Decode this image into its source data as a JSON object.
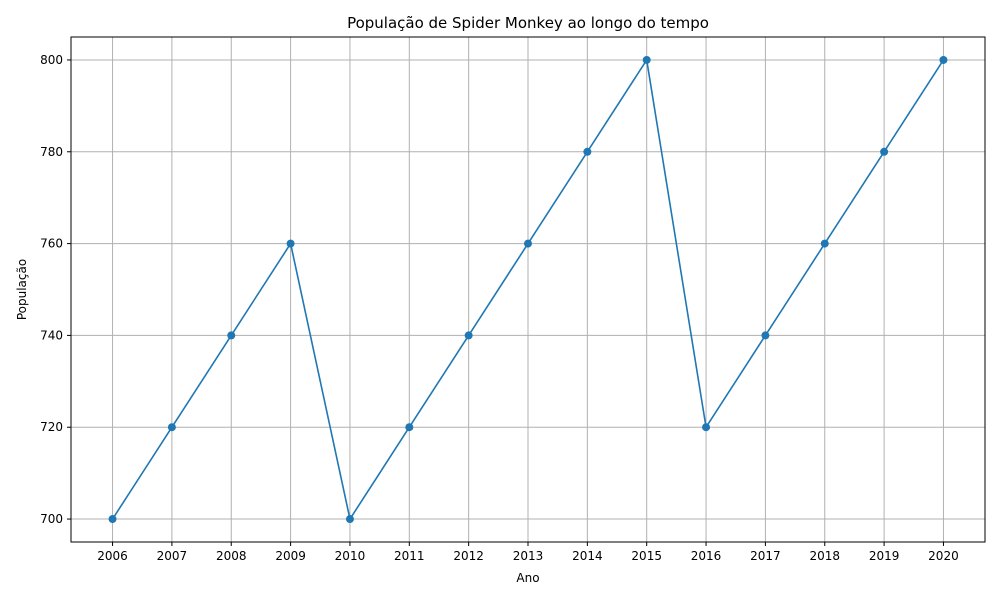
{
  "chart_data": {
    "type": "line",
    "title": "População de Spider Monkey ao longo do tempo",
    "xlabel": "Ano",
    "ylabel": "População",
    "x": [
      2006,
      2007,
      2008,
      2009,
      2010,
      2011,
      2012,
      2013,
      2014,
      2015,
      2016,
      2017,
      2018,
      2019,
      2020
    ],
    "x_tick_labels": [
      "2006",
      "2007",
      "2008",
      "2009",
      "2010",
      "2011",
      "2012",
      "2013",
      "2014",
      "2015",
      "2016",
      "2017",
      "2018",
      "2019",
      "2020"
    ],
    "series": [
      {
        "values": [
          700,
          720,
          740,
          760,
          700,
          720,
          740,
          760,
          780,
          800,
          720,
          740,
          760,
          780,
          800
        ],
        "color": "#1f77b4",
        "marker": "circle"
      }
    ],
    "xlim": [
      2005.3,
      2020.7
    ],
    "ylim": [
      695,
      805
    ],
    "y_ticks": [
      700,
      720,
      740,
      760,
      780,
      800
    ],
    "y_tick_labels": [
      "700",
      "720",
      "740",
      "760",
      "780",
      "800"
    ],
    "grid": true
  }
}
